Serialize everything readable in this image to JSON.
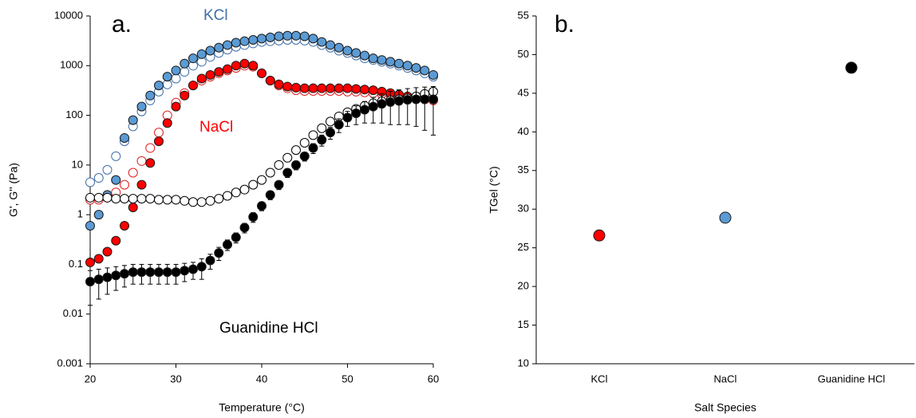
{
  "chart_data": [
    {
      "type": "scatter",
      "log_y": true,
      "x_label": "Temperature (°C)",
      "y_label": "G', G'' (Pa)",
      "xlim": [
        20,
        60
      ],
      "xticks": [
        20,
        30,
        40,
        50,
        60
      ],
      "ylim": [
        0.001,
        10000
      ],
      "yticks": [
        0.001,
        0.01,
        0.1,
        1,
        10,
        100,
        1000,
        10000
      ],
      "annotations": [
        {
          "text": "a.",
          "color": "#000000"
        },
        {
          "text": "KCl",
          "color": "#3f6ea8"
        },
        {
          "text": "NaCl",
          "color": "#ff0000"
        },
        {
          "text": "Guanidine HCl",
          "color": "#000000"
        }
      ],
      "x": [
        20,
        21,
        22,
        23,
        24,
        25,
        26,
        27,
        28,
        29,
        30,
        31,
        32,
        33,
        34,
        35,
        36,
        37,
        38,
        39,
        40,
        41,
        42,
        43,
        44,
        45,
        46,
        47,
        48,
        49,
        50,
        51,
        52,
        53,
        54,
        55,
        56,
        57,
        58,
        59,
        60
      ],
      "series": [
        {
          "color": "#3f6ea8",
          "filled": false,
          "values": [
            4.5,
            5.5,
            8,
            15,
            30,
            60,
            120,
            200,
            300,
            420,
            550,
            750,
            1000,
            1200,
            1500,
            1800,
            2100,
            2400,
            2600,
            2800,
            3000,
            3100,
            3200,
            3300,
            3300,
            3200,
            3000,
            2600,
            2300,
            2000,
            1800,
            1600,
            1400,
            1300,
            1200,
            1100,
            1000,
            900,
            800,
            700,
            600
          ]
        },
        {
          "color": "#5b9bd5",
          "filled": true,
          "values": [
            0.6,
            1,
            2.5,
            5,
            35,
            80,
            150,
            250,
            400,
            600,
            800,
            1100,
            1400,
            1700,
            2000,
            2300,
            2600,
            2900,
            3100,
            3300,
            3500,
            3700,
            3900,
            4000,
            4000,
            3900,
            3500,
            3000,
            2600,
            2300,
            2000,
            1800,
            1600,
            1400,
            1300,
            1200,
            1100,
            1000,
            900,
            800,
            650
          ]
        },
        {
          "color": "#e02020",
          "filled": false,
          "values": [
            2,
            2,
            2.2,
            2.8,
            4,
            7,
            12,
            22,
            45,
            100,
            180,
            280,
            400,
            500,
            600,
            700,
            800,
            900,
            1000,
            950,
            700,
            500,
            400,
            350,
            320,
            310,
            310,
            310,
            310,
            310,
            300,
            300,
            290,
            280,
            270,
            260,
            240,
            230,
            220,
            210,
            200
          ]
        },
        {
          "color": "#ff0000",
          "filled": true,
          "values": [
            0.11,
            0.13,
            0.18,
            0.3,
            0.6,
            1.4,
            4,
            11,
            30,
            70,
            150,
            250,
            400,
            550,
            650,
            750,
            850,
            1000,
            1100,
            1000,
            700,
            500,
            420,
            380,
            360,
            350,
            350,
            350,
            350,
            350,
            350,
            340,
            330,
            320,
            300,
            280,
            260,
            240,
            230,
            220,
            210
          ]
        },
        {
          "color": "#000000",
          "filled": false,
          "values": [
            2.2,
            2.2,
            2.2,
            2.1,
            2.1,
            2.1,
            2.1,
            2.1,
            2.0,
            2.0,
            2.0,
            1.9,
            1.8,
            1.8,
            1.9,
            2.1,
            2.4,
            2.8,
            3.2,
            4,
            5,
            7,
            10,
            14,
            20,
            28,
            40,
            55,
            75,
            95,
            115,
            135,
            155,
            175,
            190,
            200,
            210,
            220,
            240,
            270,
            300
          ]
        },
        {
          "color": "#000000",
          "filled": true,
          "values": [
            0.045,
            0.05,
            0.055,
            0.06,
            0.065,
            0.07,
            0.07,
            0.07,
            0.07,
            0.07,
            0.07,
            0.075,
            0.08,
            0.09,
            0.12,
            0.17,
            0.25,
            0.35,
            0.55,
            0.9,
            1.5,
            2.5,
            4,
            7,
            10,
            15,
            22,
            32,
            45,
            65,
            90,
            110,
            130,
            150,
            170,
            185,
            195,
            205,
            210,
            210,
            210
          ],
          "errors": [
            0.03,
            0.03,
            0.03,
            0.03,
            0.03,
            0.03,
            0.03,
            0.03,
            0.03,
            0.03,
            0.03,
            0.03,
            0.03,
            0.04,
            0.04,
            0.05,
            0.06,
            0.08,
            0.12,
            0.2,
            0.3,
            0.5,
            0.8,
            1.4,
            2,
            3,
            5,
            8,
            12,
            20,
            30,
            45,
            60,
            80,
            100,
            120,
            130,
            140,
            150,
            160,
            170
          ]
        }
      ]
    },
    {
      "type": "dot",
      "x_label": "Salt Species",
      "y_label": "TGel (°C)",
      "annotations": [
        {
          "text": "b.",
          "color": "#000000"
        }
      ],
      "categories": [
        "KCl",
        "NaCl",
        "Guanidine HCl"
      ],
      "values": [
        26.6,
        28.9,
        48.3
      ],
      "colors": [
        "#ff0000",
        "#5b9bd5",
        "#000000"
      ],
      "ylim": [
        10,
        55
      ],
      "yticks": [
        10,
        15,
        20,
        25,
        30,
        35,
        40,
        45,
        50,
        55
      ]
    }
  ]
}
